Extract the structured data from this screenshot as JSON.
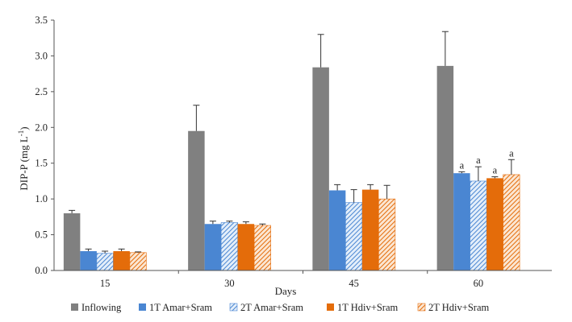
{
  "chart_data": {
    "type": "bar",
    "title": "",
    "xlabel": "Days",
    "ylabel": "DIP-P (mg L",
    "ylabel_sup": "-1",
    "ylabel_end": ")",
    "ylim": [
      0,
      3.5
    ],
    "yticks": [
      "0.0",
      "0.5",
      "1.0",
      "1.5",
      "2.0",
      "2.5",
      "3.0",
      "3.5"
    ],
    "categories": [
      "15",
      "30",
      "45",
      "60"
    ],
    "series": [
      {
        "name": "Inflowing",
        "color": "#808080",
        "pattern": "solid",
        "values": [
          0.8,
          1.95,
          2.84,
          2.86
        ],
        "errors": [
          0.04,
          0.36,
          0.46,
          0.48
        ],
        "annotations": [
          "",
          "",
          "",
          ""
        ]
      },
      {
        "name": "1T Amar+Sram",
        "color": "#4a86d2",
        "pattern": "solid",
        "values": [
          0.27,
          0.65,
          1.12,
          1.36
        ],
        "errors": [
          0.03,
          0.04,
          0.08,
          0.02
        ],
        "annotations": [
          "",
          "",
          "",
          "a"
        ]
      },
      {
        "name": "2T Amar+Sram",
        "color": "#4a86d2",
        "pattern": "hatch",
        "values": [
          0.24,
          0.67,
          0.95,
          1.25
        ],
        "errors": [
          0.03,
          0.02,
          0.18,
          0.2
        ],
        "annotations": [
          "",
          "",
          "",
          "a"
        ]
      },
      {
        "name": "1T Hdiv+Sram",
        "color": "#e46c0a",
        "pattern": "solid",
        "values": [
          0.27,
          0.65,
          1.13,
          1.29
        ],
        "errors": [
          0.03,
          0.03,
          0.07,
          0.02
        ],
        "annotations": [
          "",
          "",
          "",
          "a"
        ]
      },
      {
        "name": "2T Hdiv+Sram",
        "color": "#e46c0a",
        "pattern": "hatch",
        "values": [
          0.25,
          0.63,
          1.0,
          1.34
        ],
        "errors": [
          0.01,
          0.02,
          0.19,
          0.21
        ],
        "annotations": [
          "",
          "",
          "",
          "a"
        ]
      }
    ],
    "legend_position": "bottom"
  }
}
